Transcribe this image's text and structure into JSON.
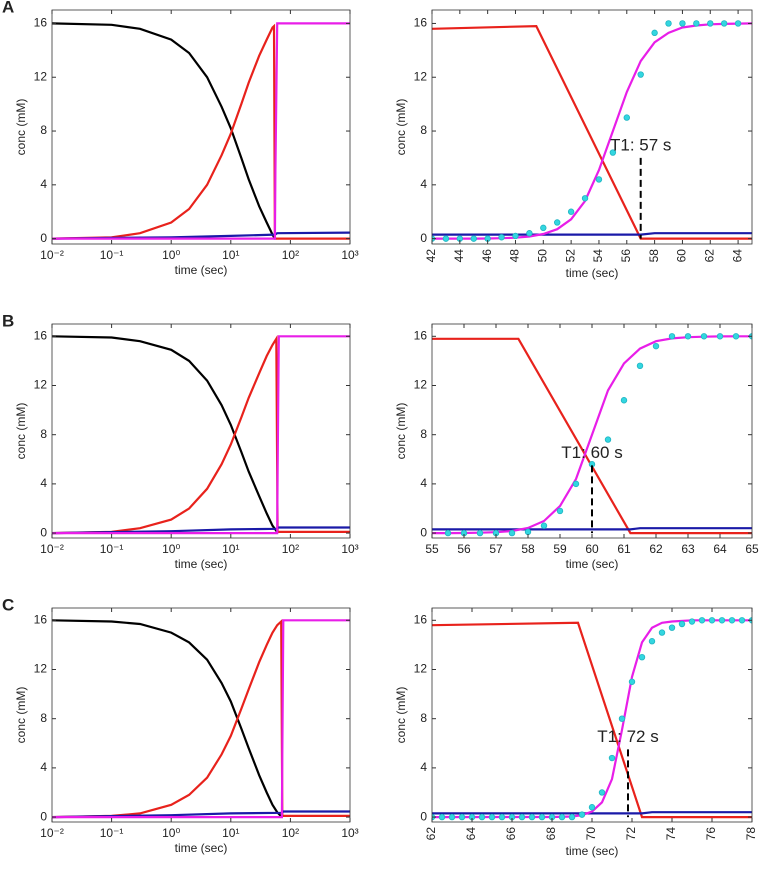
{
  "chart_data": [
    {
      "type": "line",
      "panel": "A",
      "xscale": "log",
      "xlabel": "time (sec)",
      "ylabel": "conc (mM)",
      "xlim": [
        0.01,
        1000
      ],
      "xticks": [
        {
          "value": 0.01,
          "label": "10⁻²"
        },
        {
          "value": 0.1,
          "label": "10⁻¹"
        },
        {
          "value": 1,
          "label": "10⁰"
        },
        {
          "value": 10,
          "label": "10¹"
        },
        {
          "value": 100,
          "label": "10²"
        },
        {
          "value": 1000,
          "label": "10³"
        }
      ],
      "ylim": [
        -0.4,
        17
      ],
      "yticks": [
        0,
        4,
        8,
        12,
        16
      ],
      "series": [
        {
          "color": "#000000",
          "style": "line",
          "x": [
            0.01,
            0.1,
            0.3,
            1,
            2,
            4,
            7,
            10,
            15,
            20,
            30,
            40,
            50,
            55
          ],
          "values": [
            16,
            15.9,
            15.6,
            14.8,
            13.8,
            12,
            9.8,
            8.2,
            6,
            4.4,
            2.4,
            1.2,
            0.3,
            0
          ]
        },
        {
          "color": "#e8221c",
          "style": "line",
          "x": [
            0.01,
            0.1,
            0.3,
            1,
            2,
            4,
            7,
            10,
            15,
            20,
            30,
            40,
            50,
            53,
            55,
            1000
          ],
          "values": [
            0,
            0.1,
            0.4,
            1.2,
            2.2,
            4,
            6.2,
            7.8,
            10,
            11.6,
            13.6,
            14.8,
            15.7,
            15.8,
            0,
            0
          ]
        },
        {
          "color": "#1a1aa8",
          "style": "line",
          "x": [
            0.01,
            1,
            10,
            55,
            60,
            1000
          ],
          "values": [
            0,
            0.1,
            0.2,
            0.3,
            0.4,
            0.45
          ]
        },
        {
          "color": "#e81ee8",
          "style": "line",
          "x": [
            0.01,
            55,
            56,
            60,
            1000
          ],
          "values": [
            0,
            0,
            5,
            16,
            16
          ]
        }
      ]
    },
    {
      "type": "line",
      "xscale": "linear",
      "xlabel": "time (sec)",
      "ylabel": "conc (mM)",
      "xtick_rotation": -90,
      "xlim": [
        42,
        65
      ],
      "xticks": [
        42,
        44,
        46,
        48,
        50,
        52,
        54,
        56,
        58,
        60,
        62,
        64
      ],
      "ylim": [
        -0.4,
        17
      ],
      "yticks": [
        0,
        4,
        8,
        12,
        16
      ],
      "annotation": {
        "text": "T1: 57 s",
        "x": 57,
        "y": 6
      },
      "series": [
        {
          "color": "#e8221c",
          "style": "line",
          "x": [
            42,
            49.5,
            57,
            65
          ],
          "values": [
            15.6,
            15.8,
            0,
            0
          ]
        },
        {
          "color": "#1a1aa8",
          "style": "line",
          "x": [
            42,
            57,
            58,
            65
          ],
          "values": [
            0.3,
            0.3,
            0.4,
            0.4
          ]
        },
        {
          "color": "#e81ee8",
          "style": "line",
          "x": [
            42,
            43,
            44,
            45,
            46,
            47,
            48,
            49,
            50,
            51,
            52,
            53,
            54,
            55,
            56,
            57,
            58,
            59,
            60,
            61,
            62,
            63,
            64,
            65
          ],
          "values": [
            0,
            0,
            0,
            0,
            0.01,
            0.03,
            0.07,
            0.16,
            0.34,
            0.7,
            1.44,
            2.8,
            5.1,
            8,
            10.9,
            13.2,
            14.6,
            15.3,
            15.7,
            15.85,
            15.94,
            15.97,
            15.99,
            16
          ]
        },
        {
          "color": "#33d6e0",
          "style": "dots",
          "x": [
            42,
            43,
            44,
            45,
            46,
            47,
            48,
            49,
            50,
            51,
            52,
            53,
            54,
            55,
            56,
            57,
            58,
            59,
            60,
            61,
            62,
            63,
            64
          ],
          "values": [
            0,
            0,
            0,
            0,
            0,
            0.1,
            0.2,
            0.4,
            0.8,
            1.2,
            2,
            3,
            4.4,
            6.4,
            9,
            12.2,
            15.3,
            16,
            16,
            16,
            16,
            16,
            16
          ]
        }
      ]
    },
    {
      "type": "line",
      "panel": "B",
      "xscale": "log",
      "xlabel": "time (sec)",
      "ylabel": "conc (mM)",
      "xlim": [
        0.01,
        1000
      ],
      "xticks": [
        {
          "value": 0.01,
          "label": "10⁻²"
        },
        {
          "value": 0.1,
          "label": "10⁻¹"
        },
        {
          "value": 1,
          "label": "10⁰"
        },
        {
          "value": 10,
          "label": "10¹"
        },
        {
          "value": 100,
          "label": "10²"
        },
        {
          "value": 1000,
          "label": "10³"
        }
      ],
      "ylim": [
        -0.4,
        17
      ],
      "yticks": [
        0,
        4,
        8,
        12,
        16
      ],
      "series": [
        {
          "color": "#000000",
          "style": "line",
          "x": [
            0.01,
            0.1,
            0.3,
            1,
            2,
            4,
            7,
            10,
            15,
            20,
            30,
            40,
            50,
            60
          ],
          "values": [
            16,
            15.9,
            15.6,
            14.9,
            14,
            12.4,
            10.4,
            8.8,
            6.6,
            5,
            3,
            1.6,
            0.6,
            0.1
          ]
        },
        {
          "color": "#e8221c",
          "style": "line",
          "x": [
            0.01,
            0.1,
            0.3,
            1,
            2,
            4,
            7,
            10,
            15,
            20,
            30,
            40,
            50,
            58,
            61,
            1000
          ],
          "values": [
            0,
            0.1,
            0.4,
            1.1,
            2,
            3.6,
            5.6,
            7.2,
            9.4,
            11,
            13,
            14.4,
            15.3,
            15.8,
            0.1,
            0.1
          ]
        },
        {
          "color": "#1a1aa8",
          "style": "line",
          "x": [
            0.01,
            1,
            10,
            60,
            62,
            1000
          ],
          "values": [
            0,
            0.15,
            0.3,
            0.35,
            0.45,
            0.45
          ]
        },
        {
          "color": "#e81ee8",
          "style": "line",
          "x": [
            0.01,
            60,
            61,
            64,
            1000
          ],
          "values": [
            0,
            0,
            5,
            16,
            16
          ]
        }
      ]
    },
    {
      "type": "line",
      "xscale": "linear",
      "xlabel": "time (sec)",
      "ylabel": "conc (mM)",
      "xtick_rotation": 0,
      "xlim": [
        55,
        65
      ],
      "xticks": [
        55,
        56,
        57,
        58,
        59,
        60,
        61,
        62,
        63,
        64,
        65
      ],
      "ylim": [
        -0.4,
        17
      ],
      "yticks": [
        0,
        4,
        8,
        12,
        16
      ],
      "annotation": {
        "text": "T1: 60 s",
        "x": 60,
        "y": 5.5
      },
      "series": [
        {
          "color": "#e8221c",
          "style": "line",
          "x": [
            55,
            57.7,
            61.2,
            65
          ],
          "values": [
            15.8,
            15.8,
            0,
            0
          ]
        },
        {
          "color": "#1a1aa8",
          "style": "line",
          "x": [
            55,
            61.2,
            61.5,
            65
          ],
          "values": [
            0.3,
            0.3,
            0.4,
            0.4
          ]
        },
        {
          "color": "#e81ee8",
          "style": "line",
          "x": [
            55,
            55.5,
            56,
            56.5,
            57,
            57.5,
            58,
            58.5,
            59,
            59.5,
            60,
            60.5,
            61,
            61.5,
            62,
            62.5,
            63,
            63.5,
            64,
            64.5,
            65
          ],
          "values": [
            0,
            0,
            0.01,
            0.03,
            0.07,
            0.17,
            0.41,
            0.98,
            2.2,
            4.4,
            8,
            11.6,
            13.8,
            15,
            15.6,
            15.83,
            15.93,
            15.97,
            15.99,
            16,
            16
          ]
        },
        {
          "color": "#33d6e0",
          "style": "dots",
          "x": [
            55.5,
            56,
            56.5,
            57,
            57.5,
            58,
            58.5,
            59,
            59.5,
            60,
            60.5,
            61,
            61.5,
            62,
            62.5,
            63,
            63.5,
            64,
            64.5,
            65
          ],
          "values": [
            0,
            0,
            0,
            0,
            0,
            0.1,
            0.6,
            1.8,
            4,
            5.6,
            7.6,
            10.8,
            13.6,
            15.2,
            16,
            16,
            16,
            16,
            16,
            16
          ]
        }
      ]
    },
    {
      "type": "line",
      "panel": "C",
      "xscale": "log",
      "xlabel": "time (sec)",
      "ylabel": "conc (mM)",
      "xlim": [
        0.01,
        1000
      ],
      "xticks": [
        {
          "value": 0.01,
          "label": "10⁻²"
        },
        {
          "value": 0.1,
          "label": "10⁻¹"
        },
        {
          "value": 1,
          "label": "10⁰"
        },
        {
          "value": 10,
          "label": "10¹"
        },
        {
          "value": 100,
          "label": "10²"
        },
        {
          "value": 1000,
          "label": "10³"
        }
      ],
      "ylim": [
        -0.4,
        17
      ],
      "yticks": [
        0,
        4,
        8,
        12,
        16
      ],
      "series": [
        {
          "color": "#000000",
          "style": "line",
          "x": [
            0.01,
            0.1,
            0.3,
            1,
            2,
            4,
            7,
            10,
            15,
            20,
            30,
            40,
            50,
            60,
            72
          ],
          "values": [
            16,
            15.9,
            15.7,
            15,
            14.2,
            12.8,
            10.9,
            9.4,
            7.2,
            5.6,
            3.4,
            2,
            1,
            0.4,
            0
          ]
        },
        {
          "color": "#e8221c",
          "style": "line",
          "x": [
            0.01,
            0.1,
            0.3,
            1,
            2,
            4,
            7,
            10,
            15,
            20,
            30,
            40,
            50,
            60,
            70,
            73,
            1000
          ],
          "values": [
            0,
            0.1,
            0.3,
            1,
            1.8,
            3.2,
            5.1,
            6.6,
            8.8,
            10.4,
            12.6,
            14,
            15,
            15.6,
            15.9,
            0.1,
            0.1
          ]
        },
        {
          "color": "#1a1aa8",
          "style": "line",
          "x": [
            0.01,
            1,
            10,
            72,
            75,
            1000
          ],
          "values": [
            0,
            0.15,
            0.3,
            0.35,
            0.45,
            0.45
          ]
        },
        {
          "color": "#e81ee8",
          "style": "line",
          "x": [
            0.01,
            72,
            73,
            76,
            1000
          ],
          "values": [
            0,
            0,
            5,
            16,
            16
          ]
        }
      ]
    },
    {
      "type": "line",
      "xscale": "linear",
      "xlabel": "time (sec)",
      "ylabel": "conc (mM)",
      "xtick_rotation": -90,
      "xlim": [
        62,
        78
      ],
      "xticks": [
        62,
        64,
        66,
        68,
        70,
        72,
        74,
        76,
        78
      ],
      "ylim": [
        -0.4,
        17
      ],
      "yticks": [
        0,
        4,
        8,
        12,
        16
      ],
      "annotation": {
        "text": "T1: 72 s",
        "x": 71.8,
        "y": 5.5
      },
      "series": [
        {
          "color": "#e8221c",
          "style": "line",
          "x": [
            62,
            69.3,
            72.5,
            78
          ],
          "values": [
            15.6,
            15.8,
            0,
            0
          ]
        },
        {
          "color": "#1a1aa8",
          "style": "line",
          "x": [
            62,
            72.5,
            73,
            78
          ],
          "values": [
            0.3,
            0.3,
            0.4,
            0.4
          ]
        },
        {
          "color": "#e81ee8",
          "style": "line",
          "x": [
            62,
            68,
            69,
            69.5,
            70,
            70.5,
            71,
            71.5,
            72,
            72.5,
            73,
            73.5,
            74,
            75,
            76,
            78
          ],
          "values": [
            0,
            0.005,
            0.05,
            0.15,
            0.45,
            1.2,
            3.1,
            7.1,
            11.4,
            14.2,
            15.4,
            15.8,
            15.9,
            16,
            16,
            16
          ]
        },
        {
          "color": "#33d6e0",
          "style": "dots",
          "x": [
            62,
            62.5,
            63,
            63.5,
            64,
            64.5,
            65,
            65.5,
            66,
            66.5,
            67,
            67.5,
            68,
            68.5,
            69,
            69.5,
            70,
            70.5,
            71,
            71.5,
            72,
            72.5,
            73,
            73.5,
            74,
            74.5,
            75,
            75.5,
            76,
            76.5,
            77,
            77.5,
            78
          ],
          "values": [
            0,
            0,
            0,
            0,
            0,
            0,
            0,
            0,
            0,
            0,
            0,
            0,
            0,
            0,
            0,
            0.2,
            0.8,
            2,
            4.8,
            8,
            11,
            13,
            14.3,
            15,
            15.4,
            15.7,
            15.9,
            16,
            16,
            16,
            16,
            16,
            16
          ]
        }
      ]
    }
  ]
}
